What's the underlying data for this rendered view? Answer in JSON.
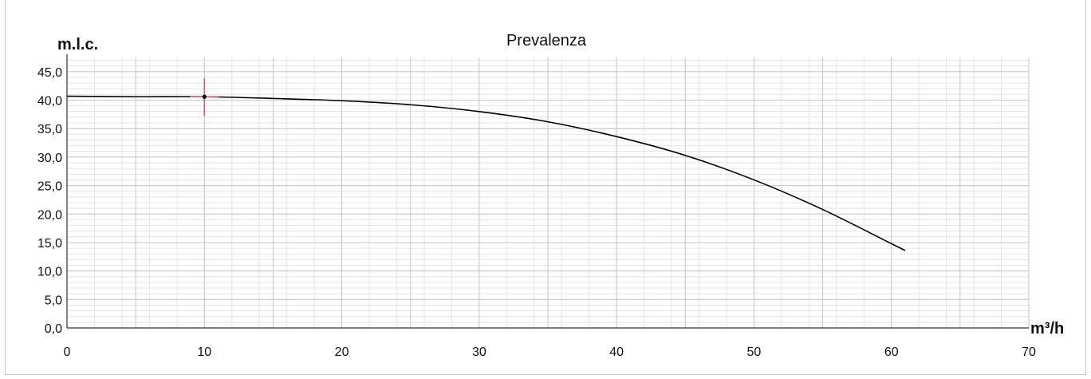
{
  "chart_data": {
    "type": "line",
    "title": "Prevalenza",
    "ylabel": "m.l.c.",
    "xlabel": "m³/h",
    "xlim": [
      0,
      70
    ],
    "ylim": [
      0,
      45
    ],
    "x_ticks": [
      0,
      10,
      20,
      30,
      40,
      50,
      60,
      70
    ],
    "x_tick_labels": [
      "0",
      "10",
      "20",
      "30",
      "40",
      "50",
      "60",
      "70"
    ],
    "y_ticks": [
      0,
      5,
      10,
      15,
      20,
      25,
      30,
      35,
      40,
      45
    ],
    "y_tick_labels": [
      "0,0",
      "5,0",
      "10,0",
      "15,0",
      "20,0",
      "25,0",
      "30,0",
      "35,0",
      "40,0",
      "45,0"
    ],
    "grid": true,
    "series": [
      {
        "color": "#000000",
        "x": [
          0,
          5,
          10,
          15,
          20,
          25,
          30,
          35,
          40,
          45,
          50,
          55,
          60,
          61
        ],
        "y": [
          40.7,
          40.6,
          40.6,
          40.3,
          39.9,
          39.2,
          38.0,
          36.2,
          33.6,
          30.3,
          26.0,
          20.8,
          14.8,
          13.6
        ]
      }
    ],
    "operating_point": {
      "x": 10,
      "y": 40.6,
      "color": "#c0607f"
    }
  }
}
